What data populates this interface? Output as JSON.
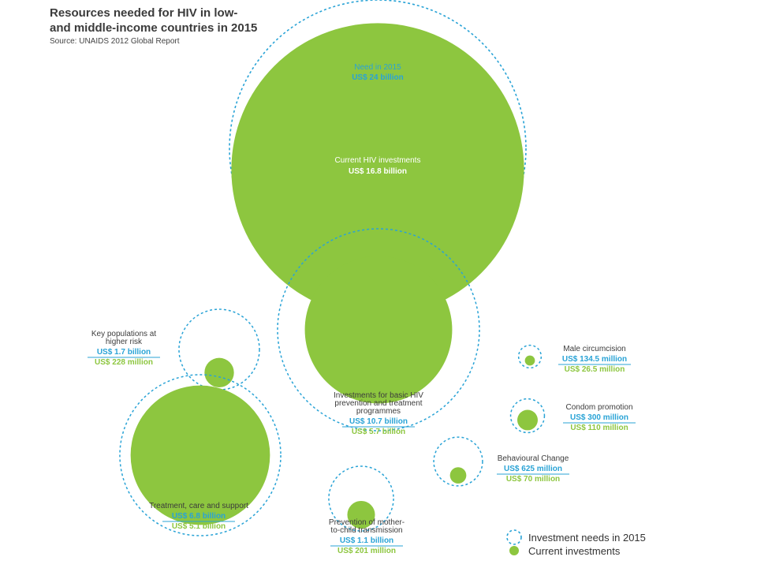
{
  "header": {
    "title_line1": "Resources needed for HIV in low-",
    "title_line2": "and middle-income countries in 2015",
    "source": "Source: UNAIDS 2012 Global Report"
  },
  "colors": {
    "need": "#29a3d6",
    "current": "#8dc63f"
  },
  "chart_data": {
    "type": "bubble",
    "legend": [
      "Investment needs in 2015",
      "Current investments"
    ],
    "legend_position": "bottom-right",
    "total": {
      "need_label": "Need in 2015",
      "need_value": "US$ 24 billion",
      "current_label": "Current HIV investments",
      "current_value": "US$ 16.8 billion",
      "need_billion": 24,
      "current_billion": 16.8
    },
    "items": [
      {
        "id": "basic",
        "label_lines": [
          "Investments for basic HIV",
          "prevention and treatment",
          "programmes"
        ],
        "need_text": "US$ 10.7 billion",
        "current_text": "US$ 5.7 billion",
        "need_billion": 10.7,
        "current_billion": 5.7
      },
      {
        "id": "key",
        "label_lines": [
          "Key populations at",
          "higher risk"
        ],
        "need_text": "US$  1.7 billion",
        "current_text": "US$ 228 million",
        "need_billion": 1.7,
        "current_billion": 0.228
      },
      {
        "id": "treat",
        "label_lines": [
          "Treatment, care and support"
        ],
        "need_text": "US$  6.8 billion",
        "current_text": "US$  5.1 billion",
        "need_billion": 6.8,
        "current_billion": 5.1
      },
      {
        "id": "pmtct",
        "label_lines": [
          "Prevention of mother-",
          "to-child transmission"
        ],
        "need_text": "US$    1.1 billion",
        "current_text": "US$  201 million",
        "need_billion": 1.1,
        "current_billion": 0.201
      },
      {
        "id": "male",
        "label_lines": [
          "Male circumcision"
        ],
        "need_text": "US$  134.5 million",
        "current_text": "US$   26.5 million",
        "need_billion": 0.1345,
        "current_billion": 0.0265
      },
      {
        "id": "condom",
        "label_lines": [
          "Condom promotion"
        ],
        "need_text": "US$  300 million",
        "current_text": "US$  110 million",
        "need_billion": 0.3,
        "current_billion": 0.11
      },
      {
        "id": "behav",
        "label_lines": [
          "Behavioural  Change"
        ],
        "need_text": "US$ 625 million",
        "current_text": "US$     70 million",
        "need_billion": 0.625,
        "current_billion": 0.07
      }
    ]
  }
}
